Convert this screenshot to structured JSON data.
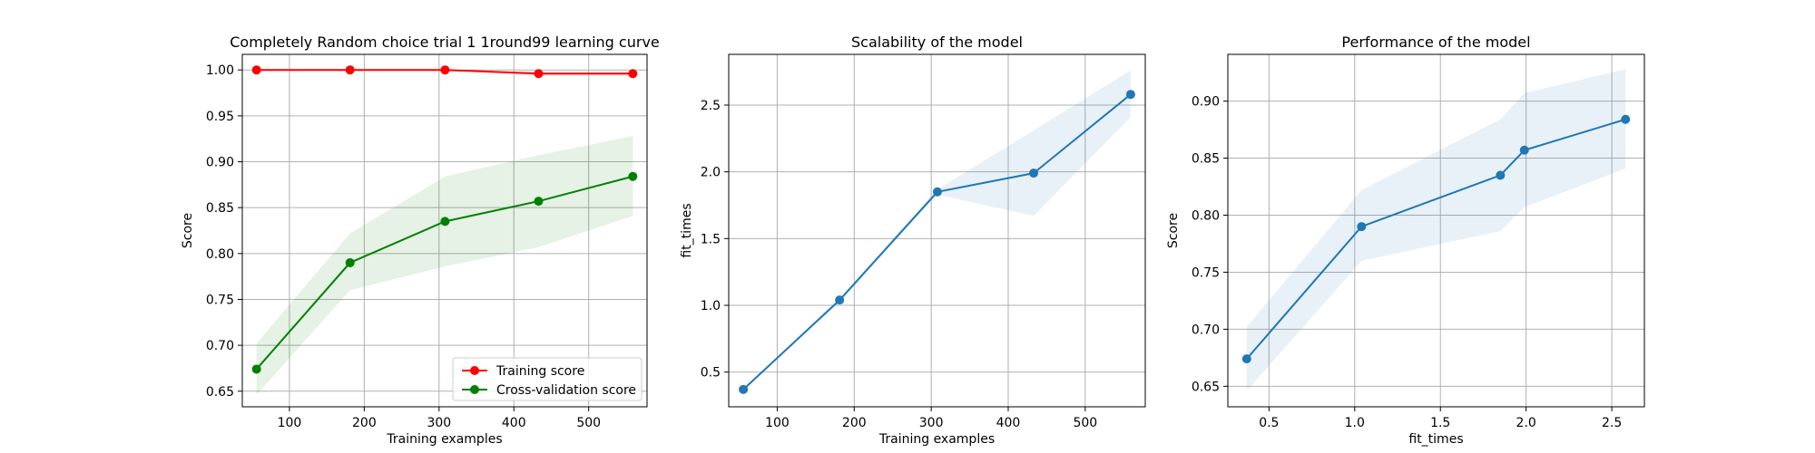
{
  "chart_data": [
    {
      "type": "line",
      "title": "Completely Random choice trial 1 1round99 learning curve",
      "xlabel": "Training examples",
      "ylabel": "Score",
      "xlim": [
        37,
        578
      ],
      "ylim": [
        0.633,
        1.017
      ],
      "xticks": [
        100,
        200,
        300,
        400,
        500
      ],
      "yticks": [
        0.65,
        0.7,
        0.75,
        0.8,
        0.85,
        0.9,
        0.95,
        1.0
      ],
      "ytick_format": 2,
      "grid": true,
      "legend": {
        "placement": "lower-right",
        "entries": [
          "Training score",
          "Cross-validation score"
        ]
      },
      "series": [
        {
          "name": "Training score",
          "color": "#ff0000",
          "x": [
            56,
            181,
            308,
            433,
            559
          ],
          "y": [
            1.0,
            1.0,
            1.0,
            0.996,
            0.996
          ],
          "band_lo": [
            1.0,
            1.0,
            1.0,
            0.994,
            0.994
          ],
          "band_hi": [
            1.0,
            1.0,
            1.0,
            0.998,
            0.998
          ],
          "band_color": "#ff0000",
          "band_opacity": 0.1
        },
        {
          "name": "Cross-validation score",
          "color": "#008000",
          "x": [
            56,
            181,
            308,
            433,
            559
          ],
          "y": [
            0.674,
            0.79,
            0.835,
            0.857,
            0.884
          ],
          "band_lo": [
            0.646,
            0.76,
            0.786,
            0.807,
            0.841
          ],
          "band_hi": [
            0.702,
            0.822,
            0.884,
            0.907,
            0.928
          ],
          "band_color": "#008000",
          "band_opacity": 0.1
        }
      ]
    },
    {
      "type": "line",
      "title": "Scalability of the model",
      "xlabel": "Training examples",
      "ylabel": "fit_times",
      "xlim": [
        37,
        578
      ],
      "ylim": [
        0.24,
        2.88
      ],
      "xticks": [
        100,
        200,
        300,
        400,
        500
      ],
      "yticks": [
        0.5,
        1.0,
        1.5,
        2.0,
        2.5
      ],
      "ytick_format": 1,
      "grid": true,
      "series": [
        {
          "color": "#1f77b4",
          "x": [
            56,
            181,
            308,
            433,
            559
          ],
          "y": [
            0.37,
            1.04,
            1.85,
            1.99,
            2.58
          ],
          "band_lo": [
            0.37,
            1.02,
            1.83,
            1.67,
            2.41
          ],
          "band_hi": [
            0.37,
            1.05,
            1.87,
            2.31,
            2.76
          ],
          "band_color": "#1f77b4",
          "band_opacity": 0.1
        }
      ]
    },
    {
      "type": "line",
      "title": "Performance of the model",
      "xlabel": "fit_times",
      "ylabel": "Score",
      "xlim": [
        0.26,
        2.69
      ],
      "ylim": [
        0.632,
        0.941
      ],
      "xticks": [
        0.5,
        1.0,
        1.5,
        2.0,
        2.5
      ],
      "yticks": [
        0.65,
        0.7,
        0.75,
        0.8,
        0.85,
        0.9
      ],
      "ytick_format": 2,
      "grid": true,
      "series": [
        {
          "color": "#1f77b4",
          "x": [
            0.37,
            1.04,
            1.85,
            1.99,
            2.58
          ],
          "y": [
            0.674,
            0.79,
            0.835,
            0.857,
            0.884
          ],
          "band_lo": [
            0.646,
            0.76,
            0.786,
            0.807,
            0.841
          ],
          "band_hi": [
            0.702,
            0.822,
            0.884,
            0.907,
            0.928
          ],
          "band_color": "#1f77b4",
          "band_opacity": 0.1
        }
      ]
    }
  ]
}
